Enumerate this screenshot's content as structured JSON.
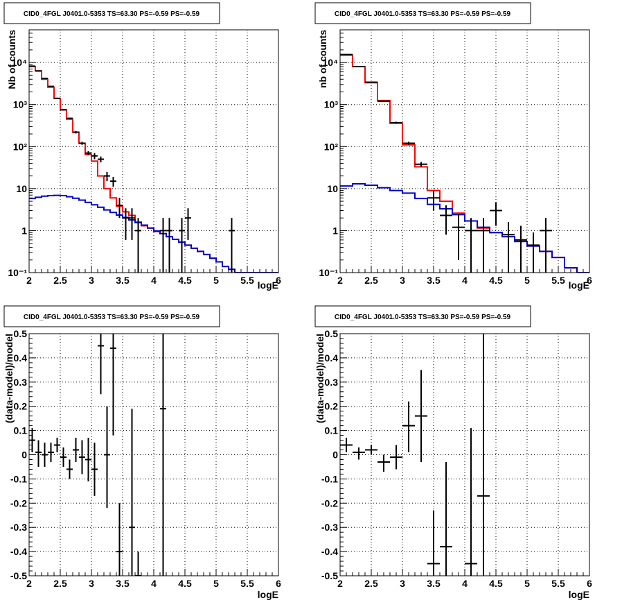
{
  "chart_data": [
    {
      "type": "line",
      "title": "CID0_4FGL J0401.0-5353 TS=63.30 PS=-0.59 PS=-0.59",
      "xlabel": "logE",
      "ylabel": "Nb of counts",
      "xlim": [
        2,
        6
      ],
      "ylim": [
        0.1,
        60000
      ],
      "yscale": "log",
      "grid": true,
      "x_ticks": [
        "2",
        "2.5",
        "3",
        "3.5",
        "4",
        "4.5",
        "5",
        "5.5",
        "6"
      ],
      "y_ticks": [
        {
          "v": 0.1,
          "label": "10⁻¹"
        },
        {
          "v": 1,
          "label": "1"
        },
        {
          "v": 10,
          "label": "10"
        },
        {
          "v": 100,
          "label": "10²"
        },
        {
          "v": 1000,
          "label": "10³"
        },
        {
          "v": 10000,
          "label": "10⁴"
        }
      ],
      "bin_edges": [
        2.0,
        2.1,
        2.2,
        2.3,
        2.4,
        2.5,
        2.6,
        2.7,
        2.8,
        2.9,
        3.0,
        3.1,
        3.2,
        3.3,
        3.4,
        3.5,
        3.6,
        3.7,
        3.8,
        3.9,
        4.0,
        4.1,
        4.2,
        4.3,
        4.4,
        4.5,
        4.6,
        4.7,
        4.8,
        4.9,
        5.0,
        5.1,
        5.2,
        5.3,
        5.4,
        5.5,
        5.6,
        5.7,
        5.8,
        5.9,
        6.0
      ],
      "series": [
        {
          "color": "#ff0000",
          "kind": "histogram",
          "values": [
            8000,
            6300,
            4000,
            2600,
            1400,
            750,
            450,
            220,
            120,
            65,
            45,
            20,
            10,
            6,
            3.8,
            2.8,
            2.3,
            1.6,
            1.3,
            1.15,
            0.95,
            0.85,
            0.72,
            0.62,
            0.53,
            0.45,
            0.38,
            0.32,
            0.27,
            0.22,
            0.18,
            0.14,
            0.12,
            0.1,
            0.1,
            0.1,
            0.1,
            0.1,
            0.1,
            0.1
          ]
        },
        {
          "color": "#0000cc",
          "kind": "histogram",
          "values": [
            5.8,
            6.2,
            6.6,
            6.8,
            6.9,
            6.8,
            6.4,
            5.9,
            5.3,
            4.7,
            4.1,
            3.6,
            3.1,
            2.7,
            2.35,
            2.05,
            1.8,
            1.55,
            1.35,
            1.15,
            0.98,
            0.85,
            0.72,
            0.62,
            0.53,
            0.45,
            0.38,
            0.32,
            0.27,
            0.22,
            0.18,
            0.14,
            0.12,
            0.1,
            0.1,
            0.1,
            0.1,
            0.1,
            0.1,
            0.1
          ]
        },
        {
          "color": "#000000",
          "kind": "points",
          "x": [
            2.05,
            2.15,
            2.25,
            2.35,
            2.45,
            2.55,
            2.65,
            2.75,
            2.85,
            2.95,
            3.05,
            3.15,
            3.25,
            3.35,
            3.45,
            3.55,
            3.65,
            3.75,
            4.15,
            4.25,
            4.45,
            4.55,
            5.25
          ],
          "y": [
            8200,
            6300,
            4200,
            2700,
            1400,
            750,
            470,
            220,
            120,
            70,
            60,
            50,
            20,
            15,
            4,
            2,
            2,
            1,
            1,
            1,
            1,
            2,
            1
          ],
          "ylo": [
            8000,
            6100,
            4100,
            2600,
            1350,
            720,
            450,
            205,
            110,
            62,
            50,
            42,
            15,
            11,
            2,
            0.6,
            0.6,
            0.1,
            0.1,
            0.1,
            0.1,
            0.6,
            0.1
          ],
          "yhi": [
            8400,
            6500,
            4300,
            2800,
            1450,
            780,
            490,
            235,
            130,
            78,
            70,
            58,
            25,
            19,
            6,
            3.4,
            3.4,
            2,
            2,
            2,
            2,
            3.4,
            2
          ]
        }
      ]
    },
    {
      "type": "line",
      "title": "CID0_4FGL J0401.0-5353 TS=63.30 PS=-0.59 PS=-0.59",
      "xlabel": "logE",
      "ylabel": "nb of counts",
      "xlim": [
        2,
        6
      ],
      "ylim": [
        0.1,
        60000
      ],
      "yscale": "log",
      "grid": true,
      "x_ticks": [
        "2",
        "2.5",
        "3",
        "3.5",
        "4",
        "4.5",
        "5",
        "5.5",
        "6"
      ],
      "y_ticks": [
        {
          "v": 0.1,
          "label": "10⁻¹"
        },
        {
          "v": 1,
          "label": "1"
        },
        {
          "v": 10,
          "label": "10"
        },
        {
          "v": 100,
          "label": "10²"
        },
        {
          "v": 1000,
          "label": "10³"
        },
        {
          "v": 10000,
          "label": "10⁴"
        }
      ],
      "bin_edges": [
        2.0,
        2.2,
        2.4,
        2.6,
        2.8,
        3.0,
        3.2,
        3.4,
        3.6,
        3.8,
        4.0,
        4.2,
        4.4,
        4.6,
        4.8,
        5.0,
        5.2,
        5.4,
        5.6,
        5.8,
        6.0
      ],
      "series": [
        {
          "color": "#ff0000",
          "kind": "histogram",
          "values": [
            15000,
            8000,
            3300,
            1250,
            360,
            110,
            33,
            9,
            5,
            2.6,
            1.7,
            1.15,
            0.9,
            0.72,
            0.55,
            0.43,
            0.32,
            0.23,
            0.13,
            0.1
          ]
        },
        {
          "color": "#0000cc",
          "kind": "histogram",
          "values": [
            11.5,
            13,
            12,
            10.5,
            9,
            7.8,
            5.8,
            4.2,
            3.3,
            2.4,
            1.7,
            1.2,
            0.9,
            0.72,
            0.55,
            0.43,
            0.32,
            0.23,
            0.13,
            0.1
          ]
        },
        {
          "color": "#000000",
          "kind": "points",
          "x": [
            2.1,
            2.3,
            2.5,
            2.7,
            2.9,
            3.1,
            3.3,
            3.5,
            3.7,
            3.9,
            4.1,
            4.3,
            4.5,
            4.7,
            4.9,
            5.1,
            5.3
          ],
          "y": [
            15500,
            8000,
            3400,
            1200,
            370,
            120,
            38,
            6,
            2.3,
            1.2,
            1,
            1,
            3,
            0.8,
            0.6,
            0.45,
            1
          ],
          "ylo": [
            15200,
            7800,
            3300,
            1150,
            350,
            110,
            33,
            3,
            0.8,
            0.2,
            0.1,
            0.1,
            1.3,
            0.1,
            0.1,
            0.1,
            0.1
          ],
          "yhi": [
            15800,
            8200,
            3500,
            1250,
            390,
            130,
            43,
            9,
            4,
            2.5,
            2,
            2,
            4.7,
            1.6,
            1.3,
            0.9,
            2
          ]
        }
      ]
    },
    {
      "type": "scatter",
      "title": "CID0_4FGL J0401.0-5353 TS=63.30 PS=-0.59 PS=-0.59",
      "xlabel": "logE",
      "ylabel": "(data-model)/model",
      "xlim": [
        2,
        6
      ],
      "ylim": [
        -0.5,
        0.5
      ],
      "grid": true,
      "x_ticks": [
        "2",
        "2.5",
        "3",
        "3.5",
        "4",
        "4.5",
        "5",
        "5.5",
        "6"
      ],
      "y_ticks": [
        {
          "v": -0.5,
          "label": "-0.5"
        },
        {
          "v": -0.4,
          "label": "-0.4"
        },
        {
          "v": -0.3,
          "label": "-0.3"
        },
        {
          "v": -0.2,
          "label": "-0.2"
        },
        {
          "v": -0.1,
          "label": "-0.1"
        },
        {
          "v": 0,
          "label": "0"
        },
        {
          "v": 0.1,
          "label": "0.1"
        },
        {
          "v": 0.2,
          "label": "0.2"
        },
        {
          "v": 0.3,
          "label": "0.3"
        },
        {
          "v": 0.4,
          "label": "0.4"
        },
        {
          "v": 0.5,
          "label": "0.5"
        }
      ],
      "xerr": 0.05,
      "x": [
        2.05,
        2.15,
        2.25,
        2.35,
        2.45,
        2.55,
        2.65,
        2.75,
        2.85,
        2.95,
        3.05,
        3.15,
        3.25,
        3.35,
        3.45,
        3.65,
        3.75,
        4.15
      ],
      "y": [
        0.06,
        0.01,
        0.0,
        0.01,
        0.04,
        -0.01,
        -0.06,
        0.02,
        -0.01,
        -0.02,
        -0.06,
        0.45,
        0.0,
        0.44,
        -0.4,
        -0.3,
        -0.5,
        0.19
      ],
      "ylo": [
        0.01,
        -0.05,
        -0.05,
        -0.03,
        0.01,
        -0.05,
        -0.1,
        -0.03,
        -0.08,
        -0.11,
        -0.17,
        0.25,
        -0.22,
        0.08,
        -0.6,
        -0.8,
        -0.6,
        -0.6
      ],
      "yhi": [
        0.11,
        0.06,
        0.05,
        0.05,
        0.07,
        0.03,
        -0.02,
        0.07,
        0.06,
        0.07,
        0.05,
        0.6,
        0.2,
        0.6,
        -0.2,
        0.19,
        -0.4,
        0.6
      ]
    },
    {
      "type": "scatter",
      "title": "CID0_4FGL J0401.0-5353 TS=63.30 PS=-0.59 PS=-0.59",
      "xlabel": "logE",
      "ylabel": "(data-model)/model",
      "xlim": [
        2,
        6
      ],
      "ylim": [
        -0.5,
        0.5
      ],
      "grid": true,
      "x_ticks": [
        "2",
        "2.5",
        "3",
        "3.5",
        "4",
        "4.5",
        "5",
        "5.5",
        "6"
      ],
      "y_ticks": [
        {
          "v": -0.5,
          "label": "-0.5"
        },
        {
          "v": -0.4,
          "label": "-0.4"
        },
        {
          "v": -0.3,
          "label": "-0.3"
        },
        {
          "v": -0.2,
          "label": "-0.2"
        },
        {
          "v": -0.1,
          "label": "-0.1"
        },
        {
          "v": 0,
          "label": "0"
        },
        {
          "v": 0.1,
          "label": "0.1"
        },
        {
          "v": 0.2,
          "label": "0.2"
        },
        {
          "v": 0.3,
          "label": "0.3"
        },
        {
          "v": 0.4,
          "label": "0.4"
        },
        {
          "v": 0.5,
          "label": "0.5"
        }
      ],
      "xerr": 0.1,
      "x": [
        2.1,
        2.3,
        2.5,
        2.7,
        2.9,
        3.1,
        3.3,
        3.5,
        3.7,
        4.1,
        4.3
      ],
      "y": [
        0.04,
        0.01,
        0.02,
        -0.03,
        -0.01,
        0.12,
        0.16,
        -0.45,
        -0.38,
        -0.45,
        -0.17
      ],
      "ylo": [
        0.01,
        -0.02,
        0.0,
        -0.07,
        -0.06,
        0.01,
        -0.03,
        -0.7,
        -0.75,
        -0.8,
        -0.6
      ],
      "yhi": [
        0.07,
        0.03,
        0.04,
        0.0,
        0.04,
        0.22,
        0.35,
        -0.23,
        -0.03,
        0.11,
        0.6
      ]
    }
  ]
}
